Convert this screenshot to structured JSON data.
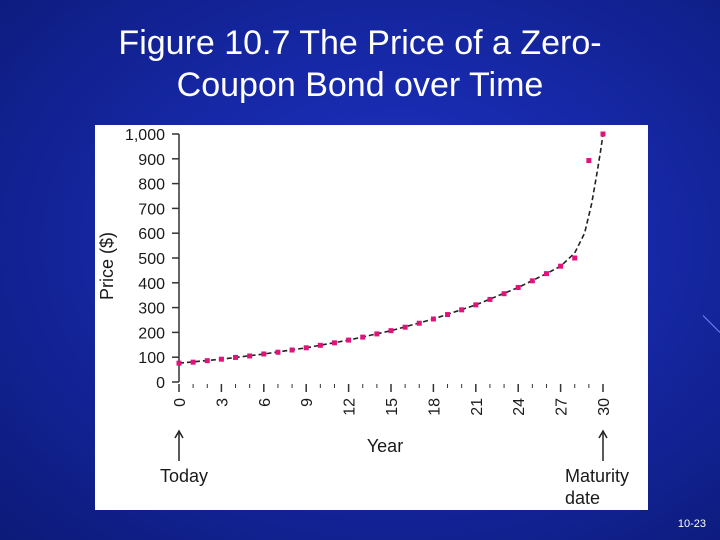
{
  "slide": {
    "title_line1": "Figure 10.7 The Price of a Zero-",
    "title_line2": "Coupon Bond over Time",
    "slide_number": "10-23"
  },
  "colors": {
    "background": "#1628a6",
    "title_text": "#ffffff",
    "data_points": "#e0137a",
    "curve": "#222222"
  },
  "chart_data": {
    "type": "scatter",
    "title": "",
    "xlabel": "Year",
    "ylabel": "Price ($)",
    "x_ticks": [
      "0",
      "3",
      "6",
      "9",
      "12",
      "15",
      "18",
      "21",
      "24",
      "27",
      "30"
    ],
    "y_ticks": [
      "0",
      "100",
      "200",
      "300",
      "400",
      "500",
      "600",
      "700",
      "800",
      "900",
      "1,000"
    ],
    "xlim": [
      0,
      30
    ],
    "ylim": [
      0,
      1000
    ],
    "grid": false,
    "annotations": {
      "start": "Today",
      "end_line1": "Maturity",
      "end_line2": "date"
    },
    "series": [
      {
        "x": [
          0,
          1,
          2,
          3,
          4,
          5,
          6,
          7,
          8,
          9,
          10,
          11,
          12,
          13,
          14,
          15,
          16,
          17,
          18,
          19,
          20,
          21,
          22,
          23,
          24,
          25,
          26,
          27,
          28,
          29,
          30
        ],
        "y": [
          76,
          80,
          86,
          92,
          99,
          105,
          113,
          120,
          129,
          138,
          148,
          158,
          169,
          181,
          194,
          207,
          221,
          237,
          254,
          272,
          291,
          311,
          333,
          356,
          381,
          408,
          437,
          467,
          500,
          893,
          1000
        ]
      }
    ],
    "curve": {
      "x": [
        0,
        3,
        6,
        9,
        12,
        15,
        18,
        21,
        24,
        26,
        27,
        28,
        28.7,
        29.2,
        29.6,
        29.85,
        30
      ],
      "y": [
        76,
        92,
        113,
        138,
        169,
        207,
        254,
        311,
        381,
        437,
        467,
        520,
        600,
        720,
        850,
        940,
        1000
      ]
    }
  }
}
